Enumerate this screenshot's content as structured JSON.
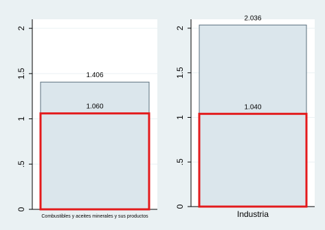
{
  "chart_data": [
    {
      "type": "bar",
      "categories": [
        "Combustibles y aceites minerales y sus productos"
      ],
      "series": [
        {
          "values": [
            1.406
          ]
        },
        {
          "values": [
            1.06
          ]
        }
      ],
      "data_labels": [
        "1.406",
        "1.060"
      ],
      "ylim": [
        0,
        2.1
      ],
      "y_ticks": [
        0,
        0.5,
        1,
        1.5,
        2
      ],
      "y_tick_labels": [
        "0",
        ".5",
        "1",
        "1.5",
        "2"
      ],
      "grid": true,
      "colors": {
        "bar_fill": "#dbe6ec",
        "bar_edge": "#5a6f7d",
        "highlight_edge": "#e31a1c",
        "background": "#eaf1f3"
      }
    },
    {
      "type": "bar",
      "categories": [
        "Industria"
      ],
      "series": [
        {
          "values": [
            2.036
          ]
        },
        {
          "values": [
            1.04
          ]
        }
      ],
      "data_labels": [
        "2.036",
        "1.040"
      ],
      "ylim": [
        0,
        2.1
      ],
      "y_ticks": [
        0,
        0.5,
        1,
        1.5,
        2
      ],
      "y_tick_labels": [
        "0",
        ".5",
        "1",
        "1.5",
        "2"
      ],
      "grid": true,
      "colors": {
        "bar_fill": "#dbe6ec",
        "bar_edge": "#5a6f7d",
        "highlight_edge": "#e31a1c",
        "background": "#eaf1f3"
      }
    }
  ]
}
